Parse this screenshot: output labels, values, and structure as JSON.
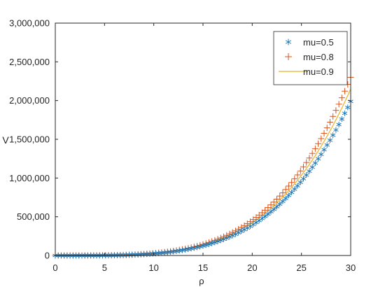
{
  "chart_data": {
    "type": "line",
    "xlabel": "ρ",
    "ylabel": "V",
    "xlim": [
      0,
      30
    ],
    "ylim": [
      0,
      3000000
    ],
    "x_ticks": [
      0,
      5,
      10,
      15,
      20,
      25,
      30
    ],
    "y_ticks": [
      0,
      500000,
      1000000,
      1500000,
      2000000,
      2500000,
      3000000
    ],
    "x_tick_labels": [
      "0",
      "5",
      "10",
      "15",
      "20",
      "25",
      "30"
    ],
    "y_tick_labels": [
      "0",
      "500,000",
      "1,000,000",
      "1,500,000",
      "2,000,000",
      "2,500,000",
      "3,000,000"
    ],
    "grid": false,
    "legend_position": "top-right",
    "series": [
      {
        "name": "mu=0.5",
        "marker": "asterisk",
        "color": "#1f77b4",
        "x_range": [
          0,
          30
        ],
        "x_step": 0.3,
        "exponent": 4,
        "y_at_30": 1990000
      },
      {
        "name": "mu=0.8",
        "marker": "plus",
        "color": "#d9541a",
        "x_range": [
          0,
          30
        ],
        "x_step": 0.3,
        "exponent": 4,
        "y_at_30": 2300000
      },
      {
        "name": "mu=0.9",
        "marker": "line",
        "color": "#edb120",
        "x_range": [
          0,
          30
        ],
        "x_step": 0.3,
        "exponent": 4,
        "y_at_30": 2150000
      }
    ]
  }
}
